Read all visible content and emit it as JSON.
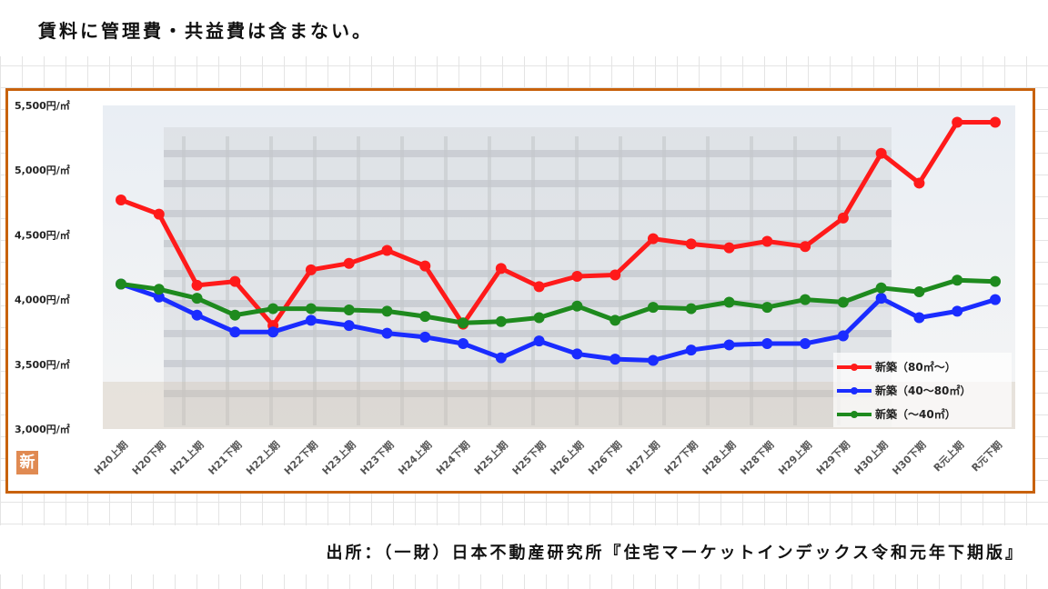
{
  "header": {
    "note": "賃料に管理費・共益費は含まない。"
  },
  "footer": {
    "source": "出所：（一財）日本不動産研究所『住宅マーケットインデックス令和元年下期版』"
  },
  "badge": {
    "label": "新"
  },
  "colors": {
    "frame": "#c8620c",
    "series": [
      "#ff1a1a",
      "#1a2cff",
      "#1e8a1e"
    ]
  },
  "chart_data": {
    "type": "line",
    "categories": [
      "H20上期",
      "H20下期",
      "H21上期",
      "H21下期",
      "H22上期",
      "H22下期",
      "H23上期",
      "H23下期",
      "H24上期",
      "H24下期",
      "H25上期",
      "H25下期",
      "H26上期",
      "H26下期",
      "H27上期",
      "H27下期",
      "H28上期",
      "H28下期",
      "H29上期",
      "H29下期",
      "H30上期",
      "H30下期",
      "R元上期",
      "R元下期"
    ],
    "series": [
      {
        "name": "新築（80㎡～）",
        "values": [
          4770,
          4660,
          4110,
          4140,
          3800,
          4230,
          4280,
          4380,
          4260,
          3810,
          4240,
          4100,
          4180,
          4190,
          4470,
          4430,
          4400,
          4450,
          4410,
          4630,
          5130,
          4900,
          5370,
          5370
        ]
      },
      {
        "name": "新築（40～80㎡）",
        "values": [
          4120,
          4020,
          3880,
          3750,
          3750,
          3840,
          3800,
          3740,
          3710,
          3660,
          3550,
          3680,
          3580,
          3540,
          3530,
          3610,
          3650,
          3660,
          3660,
          3720,
          4010,
          3860,
          3910,
          4000
        ]
      },
      {
        "name": "新築（～40㎡）",
        "values": [
          4120,
          4080,
          4010,
          3880,
          3930,
          3930,
          3920,
          3910,
          3870,
          3820,
          3830,
          3860,
          3950,
          3840,
          3940,
          3930,
          3980,
          3940,
          4000,
          3980,
          4090,
          4060,
          4150,
          4140
        ]
      }
    ],
    "ylim": [
      3000,
      5500
    ],
    "yticks": [
      3000,
      3500,
      4000,
      4500,
      5000,
      5500
    ],
    "ytick_labels": [
      "3,000円/㎡",
      "3,500円/㎡",
      "4,000円/㎡",
      "4,500円/㎡",
      "5,000円/㎡",
      "5,500円/㎡"
    ],
    "legend_position": "bottom-right",
    "grid": false
  }
}
